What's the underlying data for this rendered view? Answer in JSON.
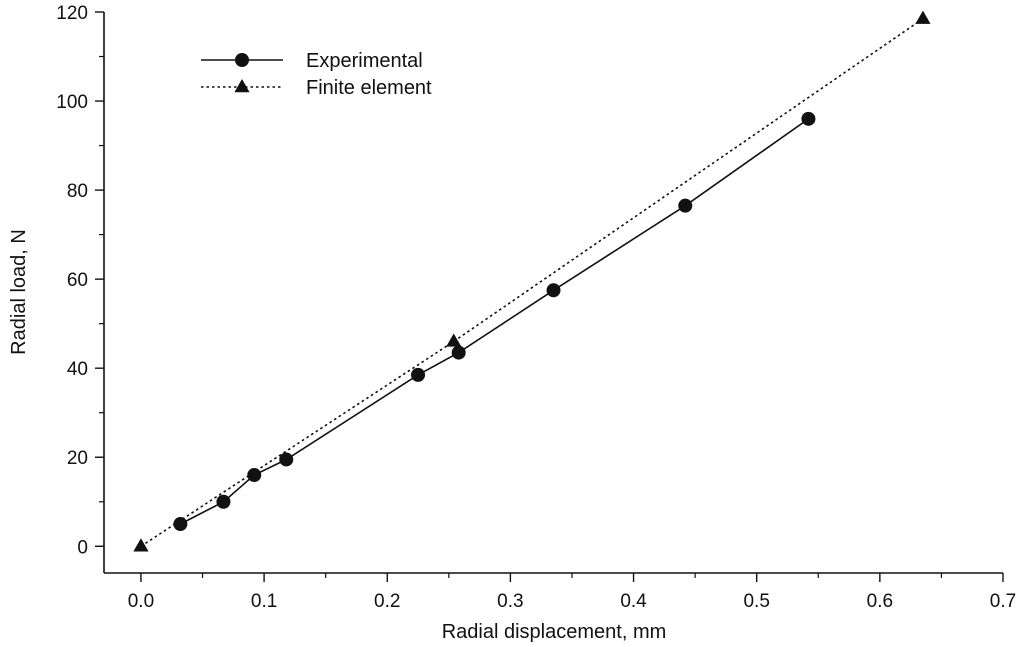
{
  "chart_data": {
    "type": "line",
    "title": "",
    "xlabel": "Radial displacement, mm",
    "ylabel": "Radial load, N",
    "xlim": [
      -0.03,
      0.7
    ],
    "ylim": [
      -6,
      120
    ],
    "xticks": [
      "0.0",
      "0.1",
      "0.2",
      "0.3",
      "0.4",
      "0.5",
      "0.6",
      "0.7"
    ],
    "yticks": [
      "0",
      "20",
      "40",
      "60",
      "80",
      "100",
      "120"
    ],
    "grid": false,
    "legend_position": "top-left",
    "series": [
      {
        "name": "Experimental",
        "line_style": "solid",
        "marker": "circle",
        "color": "#111111",
        "x": [
          0.032,
          0.067,
          0.092,
          0.118,
          0.225,
          0.258,
          0.335,
          0.442,
          0.542
        ],
        "y": [
          5,
          10,
          16,
          19.5,
          38.5,
          43.5,
          57.5,
          76.5,
          96
        ]
      },
      {
        "name": "Finite element",
        "line_style": "dotted",
        "marker": "triangle",
        "color": "#111111",
        "x": [
          0.0,
          0.254,
          0.635
        ],
        "y": [
          0,
          46,
          118.5
        ]
      }
    ]
  }
}
